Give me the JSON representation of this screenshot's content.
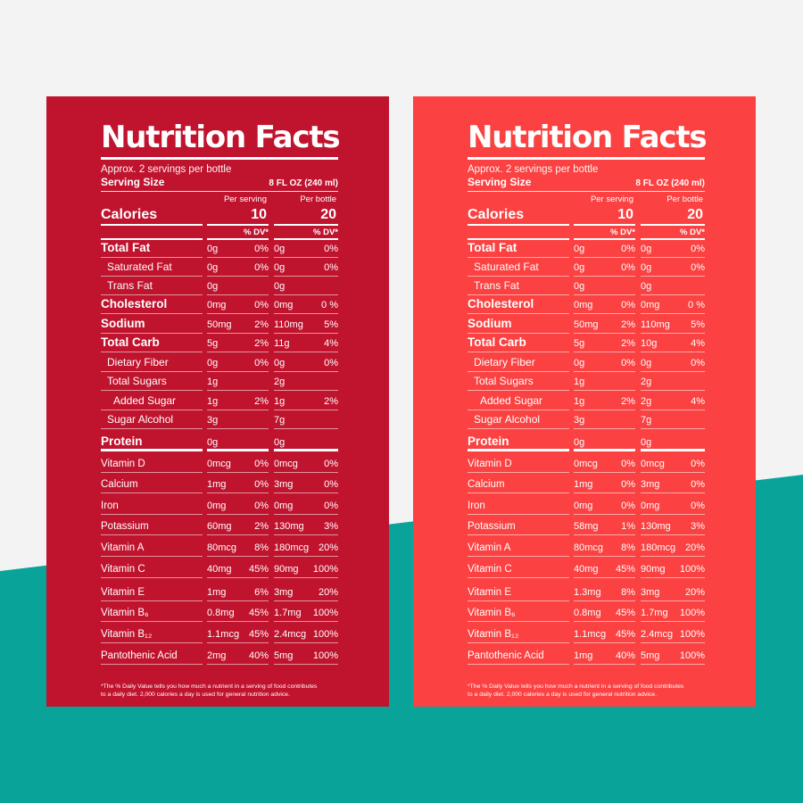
{
  "panels": [
    {
      "color": "#c0132e",
      "title": "Nutrition Facts",
      "servings": "Approx. 2 servings per bottle",
      "serving_size_label": "Serving Size",
      "serving_size_value": "8 FL OZ (240 ml)",
      "col1_header": "Per serving",
      "col2_header": "Per bottle",
      "calories_label": "Calories",
      "calories_1": "10",
      "calories_2": "20",
      "dv_header": "% DV*",
      "rows": [
        {
          "label": "Total Fat",
          "v1": "0g",
          "p1": "0%",
          "v2": "0g",
          "p2": "0%"
        },
        {
          "label": "Saturated Fat",
          "v1": "0g",
          "p1": "0%",
          "v2": "0g",
          "p2": "0%"
        },
        {
          "label": "Trans Fat",
          "v1": "0g",
          "p1": "",
          "v2": "0g",
          "p2": ""
        },
        {
          "label": "Cholesterol",
          "v1": "0mg",
          "p1": "0%",
          "v2": "0mg",
          "p2": "0 %"
        },
        {
          "label": "Sodium",
          "v1": "50mg",
          "p1": "2%",
          "v2": "110mg",
          "p2": "5%"
        },
        {
          "label": "Total Carb",
          "v1": "5g",
          "p1": "2%",
          "v2": "11g",
          "p2": "4%"
        },
        {
          "label": "Dietary Fiber",
          "v1": "0g",
          "p1": "0%",
          "v2": "0g",
          "p2": "0%"
        },
        {
          "label": "Total Sugars",
          "v1": "1g",
          "p1": "",
          "v2": "2g",
          "p2": ""
        },
        {
          "label": "Added Sugar",
          "v1": "1g",
          "p1": "2%",
          "v2": "1g",
          "p2": "2%"
        },
        {
          "label": "Sugar Alcohol",
          "v1": "3g",
          "p1": "",
          "v2": "7g",
          "p2": ""
        },
        {
          "label": "Protein",
          "v1": "0g",
          "p1": "",
          "v2": "0g",
          "p2": ""
        },
        {
          "label": "Vitamin D",
          "v1": "0mcg",
          "p1": "0%",
          "v2": "0mcg",
          "p2": "0%"
        },
        {
          "label": "Calcium",
          "v1": "1mg",
          "p1": "0%",
          "v2": "3mg",
          "p2": "0%"
        },
        {
          "label": "Iron",
          "v1": "0mg",
          "p1": "0%",
          "v2": "0mg",
          "p2": "0%"
        },
        {
          "label": "Potassium",
          "v1": "60mg",
          "p1": "2%",
          "v2": "130mg",
          "p2": "3%"
        },
        {
          "label": "Vitamin A",
          "v1": "80mcg",
          "p1": "8%",
          "v2": "180mcg",
          "p2": "20%"
        },
        {
          "label": "Vitamin C",
          "v1": "40mg",
          "p1": "45%",
          "v2": "90mg",
          "p2": "100%"
        },
        {
          "label": "Vitamin E",
          "v1": "1mg",
          "p1": "6%",
          "v2": "3mg",
          "p2": "20%"
        },
        {
          "label": "Vitamin B₆",
          "v1": "0.8mg",
          "p1": "45%",
          "v2": "1.7mg",
          "p2": "100%"
        },
        {
          "label": "Vitamin B₁₂",
          "v1": "1.1mcg",
          "p1": "45%",
          "v2": "2.4mcg",
          "p2": "100%"
        },
        {
          "label": "Pantothenic Acid",
          "v1": "2mg",
          "p1": "40%",
          "v2": "5mg",
          "p2": "100%"
        }
      ],
      "footnote_1": "*The % Daily Value tells you how much a nutrient in a serving of food contributes",
      "footnote_2": "to a daily diet. 2,000 calories a day is used for general nutrition advice."
    },
    {
      "color": "#fb4141",
      "title": "Nutrition Facts",
      "servings": "Approx. 2 servings per bottle",
      "serving_size_label": "Serving Size",
      "serving_size_value": "8 FL OZ (240 ml)",
      "col1_header": "Per serving",
      "col2_header": "Per bottle",
      "calories_label": "Calories",
      "calories_1": "10",
      "calories_2": "20",
      "dv_header": "% DV*",
      "rows": [
        {
          "label": "Total Fat",
          "v1": "0g",
          "p1": "0%",
          "v2": "0g",
          "p2": "0%"
        },
        {
          "label": "Saturated Fat",
          "v1": "0g",
          "p1": "0%",
          "v2": "0g",
          "p2": "0%"
        },
        {
          "label": "Trans Fat",
          "v1": "0g",
          "p1": "",
          "v2": "0g",
          "p2": ""
        },
        {
          "label": "Cholesterol",
          "v1": "0mg",
          "p1": "0%",
          "v2": "0mg",
          "p2": "0 %"
        },
        {
          "label": "Sodium",
          "v1": "50mg",
          "p1": "2%",
          "v2": "110mg",
          "p2": "5%"
        },
        {
          "label": "Total Carb",
          "v1": "5g",
          "p1": "2%",
          "v2": "10g",
          "p2": "4%"
        },
        {
          "label": "Dietary Fiber",
          "v1": "0g",
          "p1": "0%",
          "v2": "0g",
          "p2": "0%"
        },
        {
          "label": "Total Sugars",
          "v1": "1g",
          "p1": "",
          "v2": "2g",
          "p2": ""
        },
        {
          "label": "Added Sugar",
          "v1": "1g",
          "p1": "2%",
          "v2": "2g",
          "p2": "4%"
        },
        {
          "label": "Sugar Alcohol",
          "v1": "3g",
          "p1": "",
          "v2": "7g",
          "p2": ""
        },
        {
          "label": "Protein",
          "v1": "0g",
          "p1": "",
          "v2": "0g",
          "p2": ""
        },
        {
          "label": "Vitamin D",
          "v1": "0mcg",
          "p1": "0%",
          "v2": "0mcg",
          "p2": "0%"
        },
        {
          "label": "Calcium",
          "v1": "1mg",
          "p1": "0%",
          "v2": "3mg",
          "p2": "0%"
        },
        {
          "label": "Iron",
          "v1": "0mg",
          "p1": "0%",
          "v2": "0mg",
          "p2": "0%"
        },
        {
          "label": "Potassium",
          "v1": "58mg",
          "p1": "1%",
          "v2": "130mg",
          "p2": "3%"
        },
        {
          "label": "Vitamin A",
          "v1": "80mcg",
          "p1": "8%",
          "v2": "180mcg",
          "p2": "20%"
        },
        {
          "label": "Vitamin C",
          "v1": "40mg",
          "p1": "45%",
          "v2": "90mg",
          "p2": "100%"
        },
        {
          "label": "Vitamin E",
          "v1": "1.3mg",
          "p1": "8%",
          "v2": "3mg",
          "p2": "20%"
        },
        {
          "label": "Vitamin B₆",
          "v1": "0.8mg",
          "p1": "45%",
          "v2": "1.7mg",
          "p2": "100%"
        },
        {
          "label": "Vitamin B₁₂",
          "v1": "1.1mcg",
          "p1": "45%",
          "v2": "2.4mcg",
          "p2": "100%"
        },
        {
          "label": "Pantothenic Acid",
          "v1": "1mg",
          "p1": "40%",
          "v2": "5mg",
          "p2": "100%"
        }
      ],
      "footnote_1": "*The % Daily Value tells you how much a nutrient in a serving of food contributes",
      "footnote_2": "to a daily diet. 2,000 calories a day is used for general nutrition advice."
    }
  ]
}
